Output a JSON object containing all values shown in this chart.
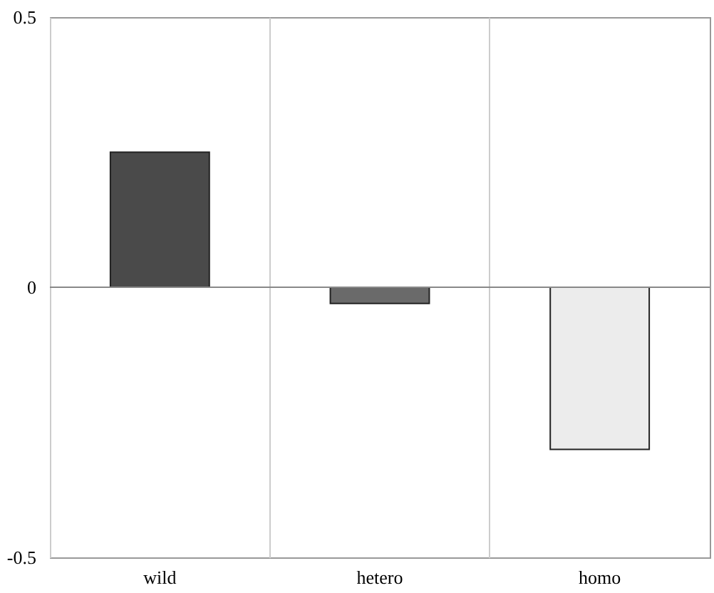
{
  "chart_data": {
    "type": "bar",
    "categories": [
      "wild",
      "hetero",
      "homo"
    ],
    "values": [
      0.25,
      -0.03,
      -0.3
    ],
    "colors": [
      "#4a4a4a",
      "#6a6a6a",
      "#ececec"
    ],
    "ylim": [
      -0.5,
      0.5
    ],
    "yticks": [
      -0.5,
      0,
      0.5
    ],
    "grid": "x",
    "ref_lines": [
      {
        "axis": "y",
        "value": 0,
        "color": "#888888"
      }
    ]
  }
}
